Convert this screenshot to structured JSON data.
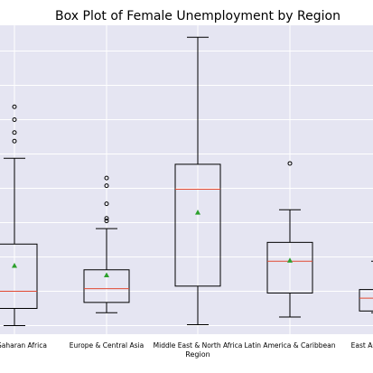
{
  "chart_data": {
    "type": "box",
    "title": "Box Plot of Female Unemployment by Region",
    "xlabel": "Region",
    "ylabel": "",
    "categories": [
      "Sub-Saharan Africa",
      "Europe & Central Asia",
      "Middle East & North Africa",
      "Latin America & Caribbean",
      "East Asia & Pacific"
    ],
    "ylim": [
      -1,
      35
    ],
    "grid": true,
    "boxes": [
      {
        "whisker_low": 0,
        "q1": 2.0,
        "median": 4.0,
        "q3": 9.5,
        "whisker_high": 19.5,
        "mean": 7.0,
        "outliers": [
          21.5,
          22.5,
          24.0,
          25.5
        ]
      },
      {
        "whisker_low": 1.5,
        "q1": 2.7,
        "median": 4.3,
        "q3": 6.5,
        "whisker_high": 11.3,
        "mean": 5.9,
        "outliers": [
          12.2,
          12.5,
          14.2,
          16.3,
          17.2
        ]
      },
      {
        "whisker_low": 0.1,
        "q1": 4.6,
        "median": 15.9,
        "q3": 18.8,
        "whisker_high": 33.6,
        "mean": 13.2,
        "outliers": []
      },
      {
        "whisker_low": 1.0,
        "q1": 3.8,
        "median": 7.5,
        "q3": 9.7,
        "whisker_high": 13.5,
        "mean": 7.6,
        "outliers": [
          18.9
        ]
      },
      {
        "whisker_low": 1.5,
        "q1": 1.7,
        "median": 3.2,
        "q3": 4.2,
        "whisker_high": 7.5,
        "mean": null,
        "outliers": []
      }
    ],
    "colors": {
      "box": "#000000",
      "median": "#e24a33",
      "mean": "#2ca02c",
      "background": "#e5e5f2",
      "grid": "#ffffff"
    }
  }
}
